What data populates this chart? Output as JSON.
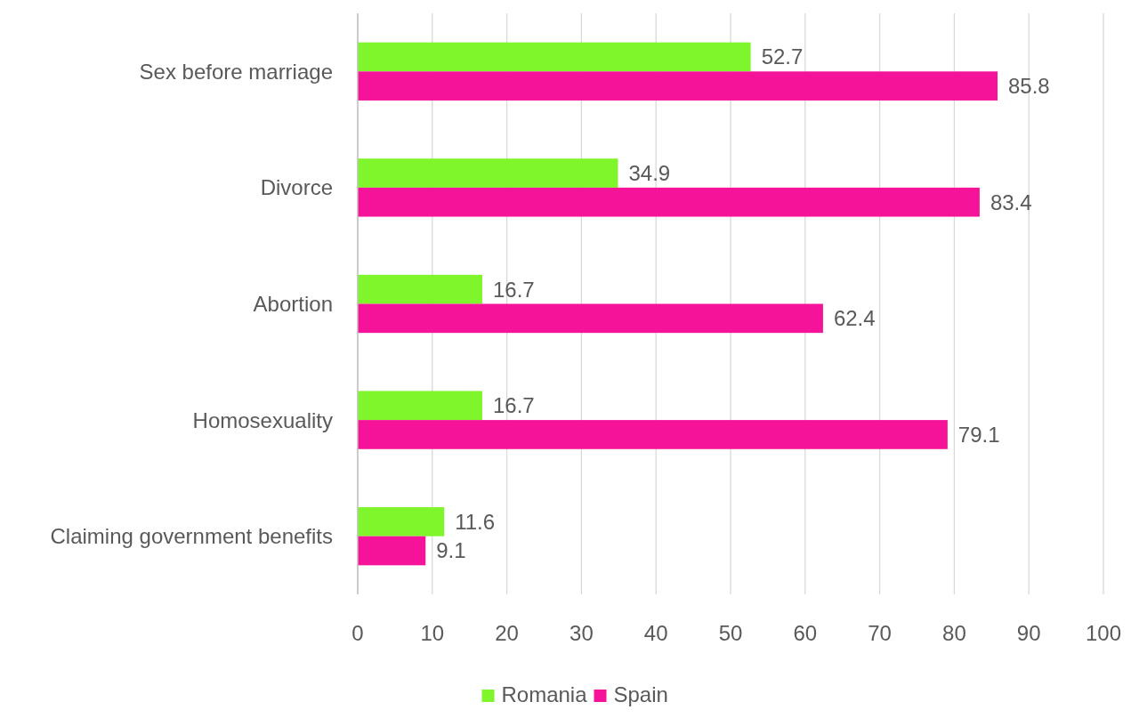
{
  "chart_data": {
    "type": "bar",
    "orientation": "horizontal",
    "categories": [
      "Sex before marriage",
      "Divorce",
      "Abortion",
      "Homosexuality",
      "Claiming government benefits"
    ],
    "series": [
      {
        "name": "Romania",
        "color": "#7ff52b",
        "values": [
          52.7,
          34.9,
          16.7,
          16.7,
          11.6
        ]
      },
      {
        "name": "Spain",
        "color": "#f5139a",
        "values": [
          85.8,
          83.4,
          62.4,
          79.1,
          9.1
        ]
      }
    ],
    "xlim": [
      0,
      100
    ],
    "xticks": [
      0,
      10,
      20,
      30,
      40,
      50,
      60,
      70,
      80,
      90,
      100
    ],
    "grid": "x",
    "legend": "bottom",
    "data_labels": true
  }
}
